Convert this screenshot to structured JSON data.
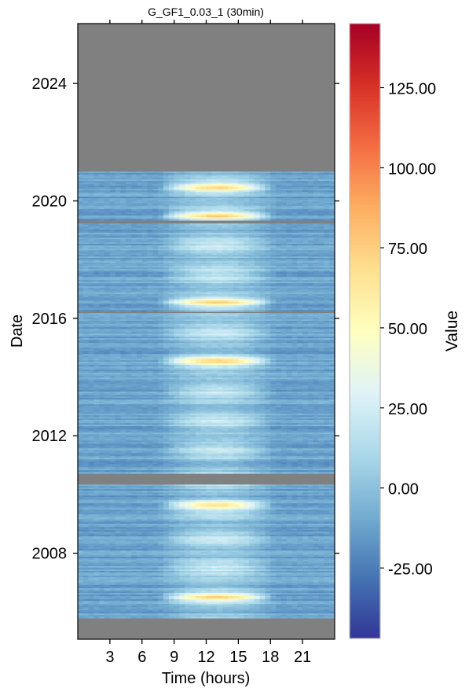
{
  "chart_data": {
    "type": "heatmap",
    "title": "G_GF1_0.03_1 (30min)",
    "xlabel": "Time (hours)",
    "ylabel": "Date",
    "x_ticks": [
      "3",
      "6",
      "9",
      "12",
      "15",
      "18",
      "21"
    ],
    "x_tick_values": [
      3,
      6,
      9,
      12,
      15,
      18,
      21
    ],
    "xlim": [
      0,
      24
    ],
    "y_ticks": [
      "2008",
      "2012",
      "2016",
      "2020",
      "2024"
    ],
    "y_tick_values": [
      2008,
      2012,
      2016,
      2020,
      2024
    ],
    "ylim": [
      2005.07,
      2026.04
    ],
    "data_years": [
      2005.8,
      2021.0
    ],
    "gap_years": [
      [
        2010.35,
        2010.7
      ],
      [
        2019.25,
        2019.35
      ],
      [
        2016.18,
        2016.23
      ]
    ],
    "colorbar": {
      "label": "Value",
      "ticks": [
        "-25.00",
        "0.00",
        "25.00",
        "50.00",
        "75.00",
        "100.00",
        "125.00"
      ],
      "tick_values": [
        -25,
        0,
        25,
        50,
        75,
        100,
        125
      ],
      "range": [
        -47,
        145
      ],
      "colormap": "RdYlBu_r"
    },
    "summer_peak_years": [
      2006.5,
      2009.65,
      2014.55,
      2016.55,
      2019.5,
      2020.45
    ],
    "missing_color": "#808080"
  }
}
